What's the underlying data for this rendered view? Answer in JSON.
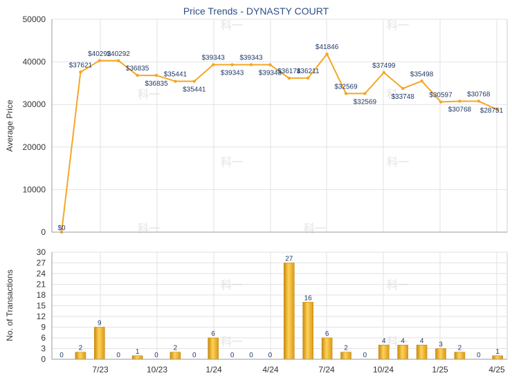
{
  "chart_data": [
    {
      "type": "line",
      "title": "Price Trends - DYNASTY COURT",
      "ylabel": "Average Price",
      "ylim": [
        0,
        50000
      ],
      "yticks": [
        "0",
        "10000",
        "20000",
        "30000",
        "40000",
        "50000"
      ],
      "grid": true,
      "color": "#f5a623",
      "values": [
        0,
        37621,
        40292,
        40292,
        36835,
        36835,
        35441,
        35441,
        39343,
        39343,
        39343,
        39343,
        36174,
        36211,
        41846,
        32569,
        32569,
        37499,
        33748,
        35498,
        30597,
        30768,
        30768,
        28751
      ],
      "labels": [
        "$0",
        "$37621",
        "$40292",
        "$40292",
        "$36835",
        "$36835",
        "$35441",
        "$35441",
        "$39343",
        "$39343",
        "$39343",
        "$39343",
        "$36174",
        "$36211",
        "$41846",
        "$32569",
        "$32569",
        "$37499",
        "$33748",
        "$35498",
        "$30597",
        "$30768",
        "$30768",
        "$28751"
      ]
    },
    {
      "type": "bar",
      "ylabel": "No. of Transactions",
      "ylim": [
        0,
        30
      ],
      "yticks": [
        "0",
        "3",
        "6",
        "9",
        "12",
        "15",
        "18",
        "21",
        "24",
        "27",
        "30"
      ],
      "xticks": [
        "7/23",
        "10/23",
        "1/24",
        "4/24",
        "7/24",
        "10/24",
        "1/25",
        "4/25"
      ],
      "grid": true,
      "color": "#f0b429",
      "values": [
        0,
        2,
        9,
        0,
        1,
        0,
        2,
        0,
        6,
        0,
        0,
        0,
        27,
        16,
        6,
        2,
        0,
        4,
        4,
        4,
        3,
        2,
        0,
        1
      ]
    }
  ],
  "watermark": [
    "科一",
    "科一",
    "科一",
    "科一",
    "科一",
    "科一",
    "科一",
    "科一",
    "科一",
    "科一",
    "科一",
    "科一"
  ]
}
